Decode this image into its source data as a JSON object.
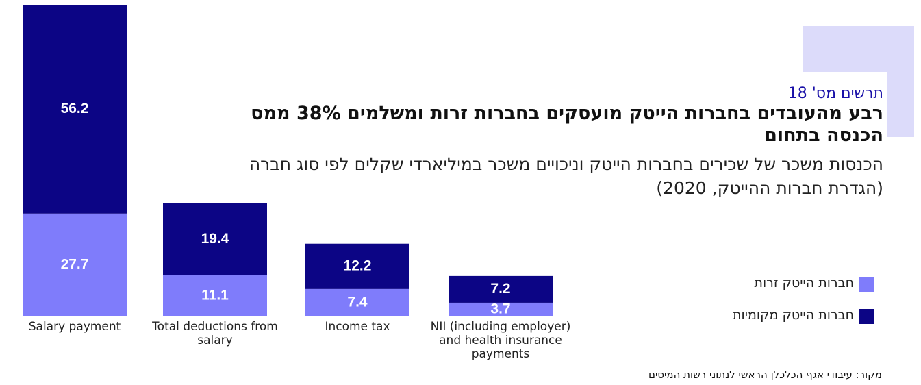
{
  "chart_data": {
    "type": "stacked_bar",
    "chart_number": "תרשים מס' 18",
    "title": "רבע מהעובדים בחברות הייטק מועסקים בחברות זרות ומשלמים 38% ממס הכנסה בתחום",
    "subtitle": "הכנסות משכר של שכירים בחברות הייטק וניכויים משכר במיליארדי שקלים לפי סוג חברה (הגדרת חברות ההייטק, 2020)",
    "categories": [
      "Salary payment",
      "Total deductions from salary",
      "Income tax",
      "NII (including employer) and health insurance payments"
    ],
    "series": [
      {
        "name": "חברות הייטק זרות",
        "color": "#7f7cfb",
        "values": [
          27.7,
          11.1,
          7.4,
          3.7
        ]
      },
      {
        "name": "חברות הייטק מקומיות",
        "color": "#0c0585",
        "values": [
          56.2,
          19.4,
          12.2,
          7.2
        ]
      }
    ],
    "ylim": [
      0,
      84
    ],
    "source": "מקור: עיבודי אגף הכלכלן הראשי לנתוני רשות המיסים"
  }
}
